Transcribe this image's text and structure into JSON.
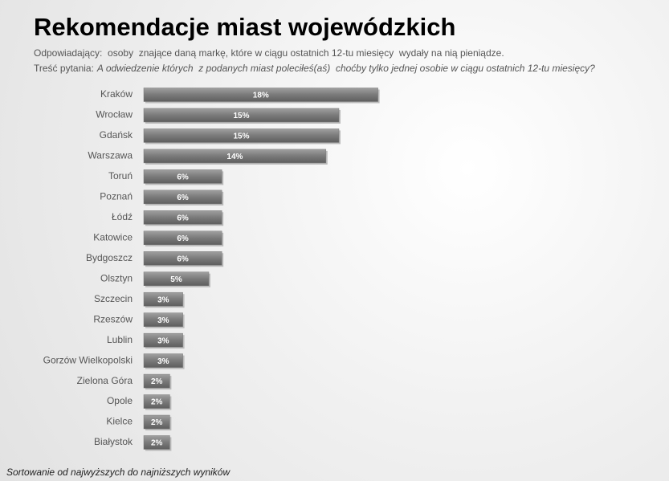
{
  "chart_data": {
    "type": "bar",
    "orientation": "horizontal",
    "title": "Rekomendacje miast wojewódzkich",
    "subtitle": "Odpowiadający:  osoby  znające daną markę, które w ciągu ostatnich 12-tu miesięcy  wydały na nią pieniądze.",
    "question_label": "Treść pytania:",
    "question": "A odwiedzenie których  z podanych miast poleciłeś(aś)  choćby tylko jednej osobie w ciągu ostatnich 12-tu miesięcy?",
    "footnote": "Sortowanie od najwyższych do najniższych wyników",
    "categories": [
      "Kraków",
      "Wrocław",
      "Gdańsk",
      "Warszawa",
      "Toruń",
      "Poznań",
      "Łódź",
      "Katowice",
      "Bydgoszcz",
      "Olsztyn",
      "Szczecin",
      "Rzeszów",
      "Lublin",
      "Gorzów Wielkopolski",
      "Zielona Góra",
      "Opole",
      "Kielce",
      "Białystok"
    ],
    "values": [
      18,
      15,
      15,
      14,
      6,
      6,
      6,
      6,
      6,
      5,
      3,
      3,
      3,
      3,
      2,
      2,
      2,
      2
    ],
    "value_labels": [
      "18%",
      "15%",
      "15%",
      "14%",
      "6%",
      "6%",
      "6%",
      "6%",
      "6%",
      "5%",
      "3%",
      "3%",
      "3%",
      "3%",
      "2%",
      "2%",
      "2%",
      "2%"
    ],
    "color": "#7a7a7a"
  }
}
